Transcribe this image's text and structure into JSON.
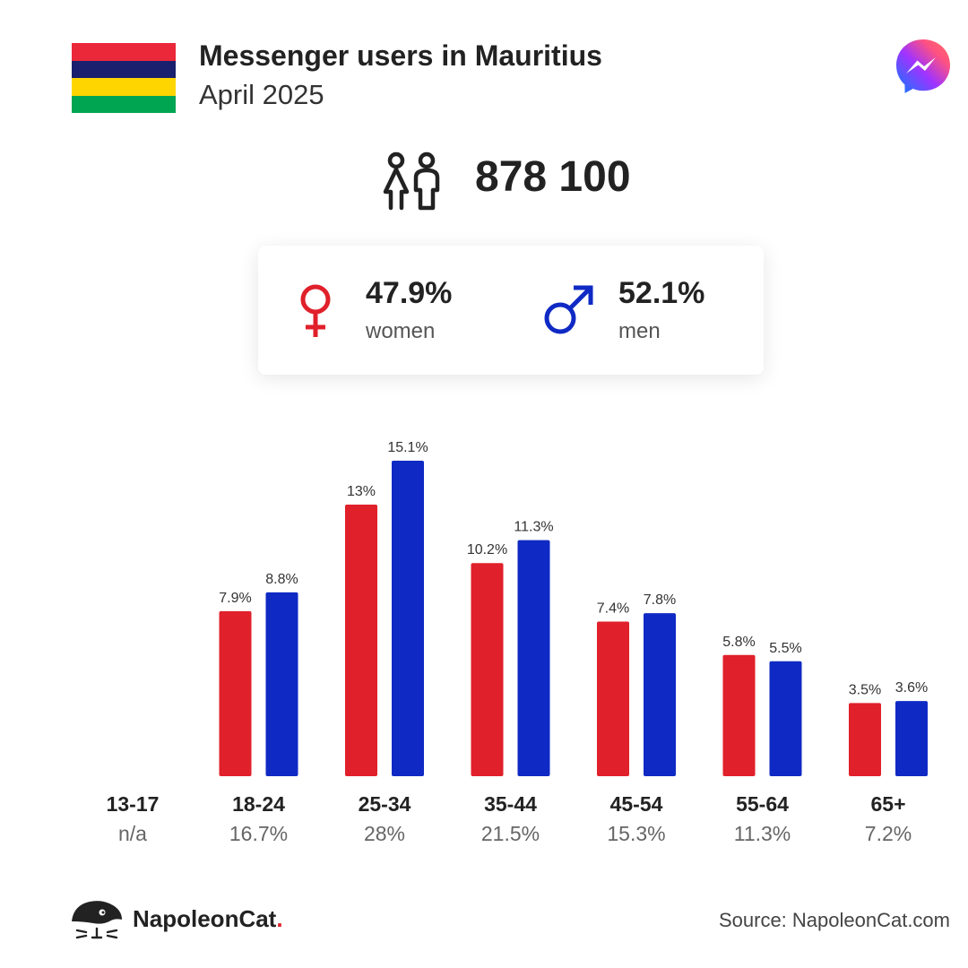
{
  "header": {
    "title": "Messenger users in Mauritius",
    "subtitle": "April 2025",
    "flag_colors": [
      "#EA2839",
      "#1A206D",
      "#FFD500",
      "#00A551"
    ]
  },
  "icons": {
    "brand": "messenger-icon",
    "users": "users-icon",
    "female": "female-symbol-icon",
    "male": "male-symbol-icon",
    "publisher": "napoleoncat-logo"
  },
  "total": {
    "value": "878 100"
  },
  "gender": {
    "women": {
      "pct": "47.9%",
      "label": "women",
      "color": "#E0202A"
    },
    "men": {
      "pct": "52.1%",
      "label": "men",
      "color": "#0F2AC4"
    }
  },
  "chart_data": {
    "type": "bar",
    "categories": [
      "13-17",
      "18-24",
      "25-34",
      "35-44",
      "45-54",
      "55-64",
      "65+"
    ],
    "category_totals": [
      "n/a",
      "16.7%",
      "28%",
      "21.5%",
      "15.3%",
      "11.3%",
      "7.2%"
    ],
    "series": [
      {
        "name": "women",
        "color": "#E0202A",
        "values": [
          null,
          7.9,
          13,
          10.2,
          7.4,
          5.8,
          3.5
        ],
        "labels": [
          "",
          "7.9%",
          "13%",
          "10.2%",
          "7.4%",
          "5.8%",
          "3.5%"
        ]
      },
      {
        "name": "men",
        "color": "#0F2AC4",
        "values": [
          null,
          8.8,
          15.1,
          11.3,
          7.8,
          5.5,
          3.6
        ],
        "labels": [
          "",
          "8.8%",
          "15.1%",
          "11.3%",
          "7.8%",
          "5.5%",
          "3.6%"
        ]
      }
    ],
    "ylim": [
      0,
      15.1
    ],
    "grid": false
  },
  "footer": {
    "brand_name": "NapoleonCat",
    "brand_dot": ".",
    "source": "Source: NapoleonCat.com"
  }
}
